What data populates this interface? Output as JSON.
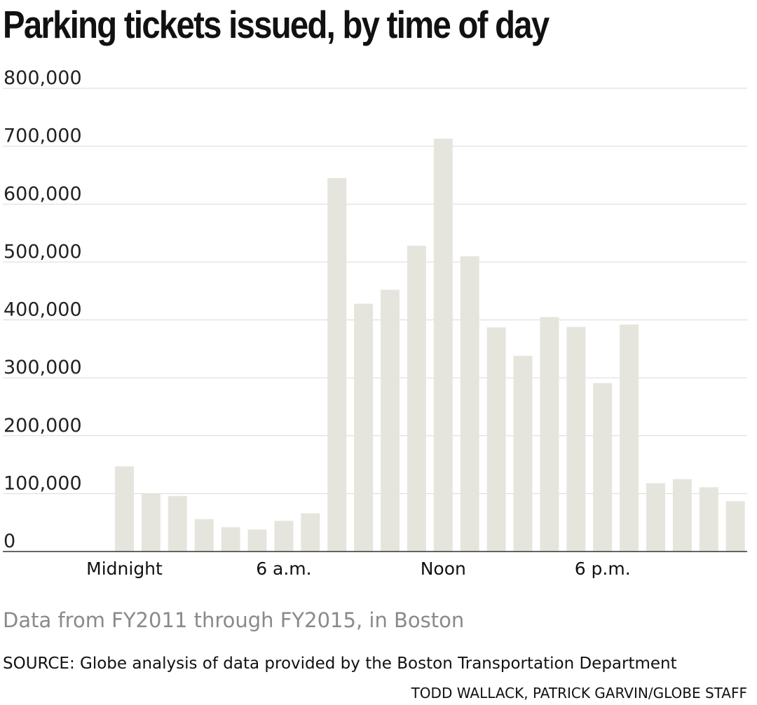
{
  "header": {
    "title": "Parking tickets issued, by time of day"
  },
  "footer": {
    "note": "Data from FY2011 through FY2015, in Boston",
    "source": "SOURCE: Globe analysis of data provided by the Boston Transportation Department",
    "credit": "TODD WALLACK, PATRICK GARVIN/GLOBE STAFF"
  },
  "colors": {
    "bar": "#e6e5dd",
    "grid": "#d9d9d9",
    "baseline": "#333333"
  },
  "chart_data": {
    "type": "bar",
    "title": "Parking tickets issued, by time of day",
    "xlabel": "",
    "ylabel": "",
    "ylim": [
      0,
      800000
    ],
    "yticks": [
      0,
      100000,
      200000,
      300000,
      400000,
      500000,
      600000,
      700000,
      800000
    ],
    "ytick_labels": [
      "0",
      "100,000",
      "200,000",
      "300,000",
      "400,000",
      "500,000",
      "600,000",
      "700,000",
      "800,000"
    ],
    "xtick_labels": [
      {
        "index": 0,
        "label": "Midnight"
      },
      {
        "index": 6,
        "label": "6 a.m."
      },
      {
        "index": 12,
        "label": "Noon"
      },
      {
        "index": 18,
        "label": "6 p.m."
      }
    ],
    "grid": true,
    "values": [
      147000,
      100000,
      96000,
      56000,
      42000,
      38000,
      53000,
      66000,
      645000,
      428000,
      452000,
      528000,
      713000,
      510000,
      387000,
      338000,
      405000,
      388000,
      291000,
      392000,
      118000,
      125000,
      111000,
      87000
    ]
  }
}
